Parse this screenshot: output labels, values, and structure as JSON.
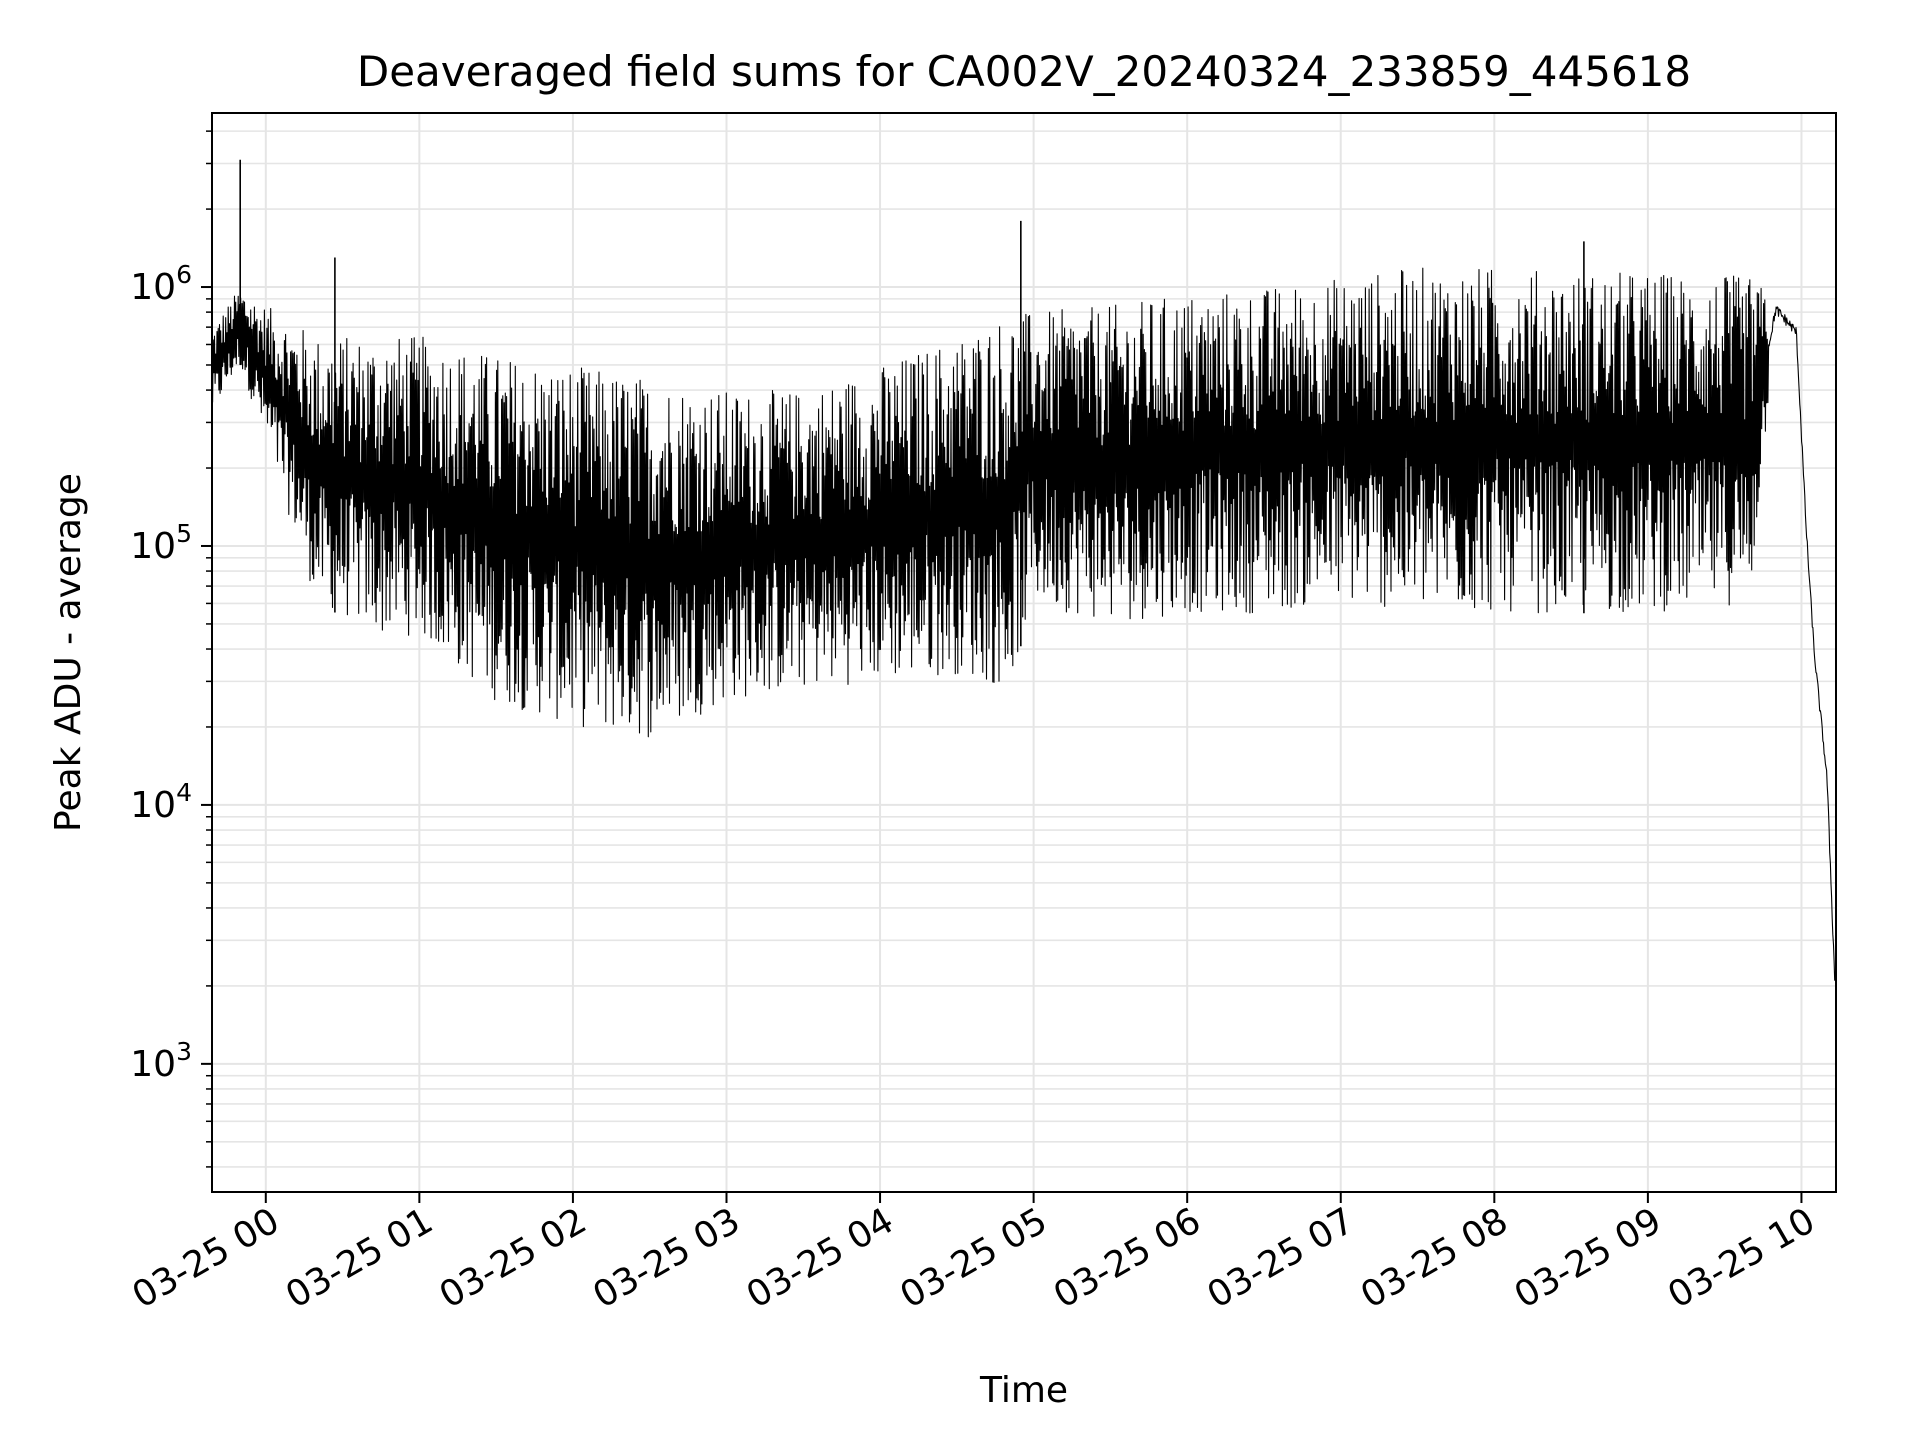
{
  "chart_data": {
    "type": "line",
    "title": "Deaveraged field sums for CA002V_20240324_233859_445618",
    "xlabel": "Time",
    "ylabel": "Peak ADU - average",
    "yscale": "log",
    "ylim": [
      320,
      4700000
    ],
    "xlim": [
      "2024-03-24 23:38:59",
      "2024-03-25 10:13:30"
    ],
    "grid": true,
    "legend": "none",
    "line_color": "#000000",
    "grid_color": "#e5e5e5",
    "x_ticks": [
      {
        "value": "2024-03-25 00:00",
        "label": "03-25 00"
      },
      {
        "value": "2024-03-25 01:00",
        "label": "03-25 01"
      },
      {
        "value": "2024-03-25 02:00",
        "label": "03-25 02"
      },
      {
        "value": "2024-03-25 03:00",
        "label": "03-25 03"
      },
      {
        "value": "2024-03-25 04:00",
        "label": "03-25 04"
      },
      {
        "value": "2024-03-25 05:00",
        "label": "03-25 05"
      },
      {
        "value": "2024-03-25 06:00",
        "label": "03-25 06"
      },
      {
        "value": "2024-03-25 07:00",
        "label": "03-25 07"
      },
      {
        "value": "2024-03-25 08:00",
        "label": "03-25 08"
      },
      {
        "value": "2024-03-25 09:00",
        "label": "03-25 09"
      },
      {
        "value": "2024-03-25 10:00",
        "label": "03-25 10"
      }
    ],
    "y_ticks": [
      {
        "value": 1000,
        "base": "10",
        "exp": "3"
      },
      {
        "value": 10000,
        "base": "10",
        "exp": "4"
      },
      {
        "value": 100000,
        "base": "10",
        "exp": "5"
      },
      {
        "value": 1000000,
        "base": "10",
        "exp": "6"
      }
    ],
    "series_envelope": {
      "description_of_shape": "dense oscillating signal",
      "points": [
        {
          "t": "2024-03-24 23:39",
          "low": 320000,
          "high": 700000
        },
        {
          "t": "2024-03-24 23:50",
          "low": 500000,
          "high": 1000000
        },
        {
          "t": "2024-03-25 00:00",
          "low": 250000,
          "high": 850000
        },
        {
          "t": "2024-03-25 00:20",
          "low": 60000,
          "high": 650000
        },
        {
          "t": "2024-03-25 00:45",
          "low": 45000,
          "high": 650000
        },
        {
          "t": "2024-03-25 01:00",
          "low": 45000,
          "high": 650000
        },
        {
          "t": "2024-03-25 01:30",
          "low": 25000,
          "high": 550000
        },
        {
          "t": "2024-03-25 02:00",
          "low": 20000,
          "high": 500000
        },
        {
          "t": "2024-03-25 02:30",
          "low": 18000,
          "high": 450000
        },
        {
          "t": "2024-03-25 03:00",
          "low": 25000,
          "high": 400000
        },
        {
          "t": "2024-03-25 03:30",
          "low": 28000,
          "high": 400000
        },
        {
          "t": "2024-03-25 04:00",
          "low": 30000,
          "high": 500000
        },
        {
          "t": "2024-03-25 04:30",
          "low": 32000,
          "high": 650000
        },
        {
          "t": "2024-03-25 04:50",
          "low": 28000,
          "high": 800000
        },
        {
          "t": "2024-03-25 05:00",
          "low": 60000,
          "high": 800000
        },
        {
          "t": "2024-03-25 05:30",
          "low": 50000,
          "high": 850000
        },
        {
          "t": "2024-03-25 06:00",
          "low": 55000,
          "high": 950000
        },
        {
          "t": "2024-03-25 06:30",
          "low": 55000,
          "high": 1000000
        },
        {
          "t": "2024-03-25 07:00",
          "low": 60000,
          "high": 1100000
        },
        {
          "t": "2024-03-25 07:30",
          "low": 55000,
          "high": 1200000
        },
        {
          "t": "2024-03-25 08:00",
          "low": 55000,
          "high": 1200000
        },
        {
          "t": "2024-03-25 08:30",
          "low": 55000,
          "high": 1150000
        },
        {
          "t": "2024-03-25 09:00",
          "low": 55000,
          "high": 1150000
        },
        {
          "t": "2024-03-25 09:40",
          "low": 60000,
          "high": 1100000
        },
        {
          "t": "2024-03-25 09:50",
          "low": 750000,
          "high": 900000
        },
        {
          "t": "2024-03-25 09:58",
          "low": 600000,
          "high": 750000
        },
        {
          "t": "2024-03-25 10:02",
          "low": 60000,
          "high": 200000
        },
        {
          "t": "2024-03-25 10:05",
          "low": 30000,
          "high": 50000
        },
        {
          "t": "2024-03-25 10:10",
          "low": 8000,
          "high": 20000
        },
        {
          "t": "2024-03-25 10:13",
          "low": 1500,
          "high": 3000
        }
      ],
      "spikes": [
        {
          "t": "2024-03-24 23:50",
          "value": 3100000
        },
        {
          "t": "2024-03-25 00:27",
          "value": 1300000
        },
        {
          "t": "2024-03-25 04:55",
          "value": 1800000
        },
        {
          "t": "2024-03-25 08:35",
          "value": 1500000
        }
      ]
    }
  }
}
